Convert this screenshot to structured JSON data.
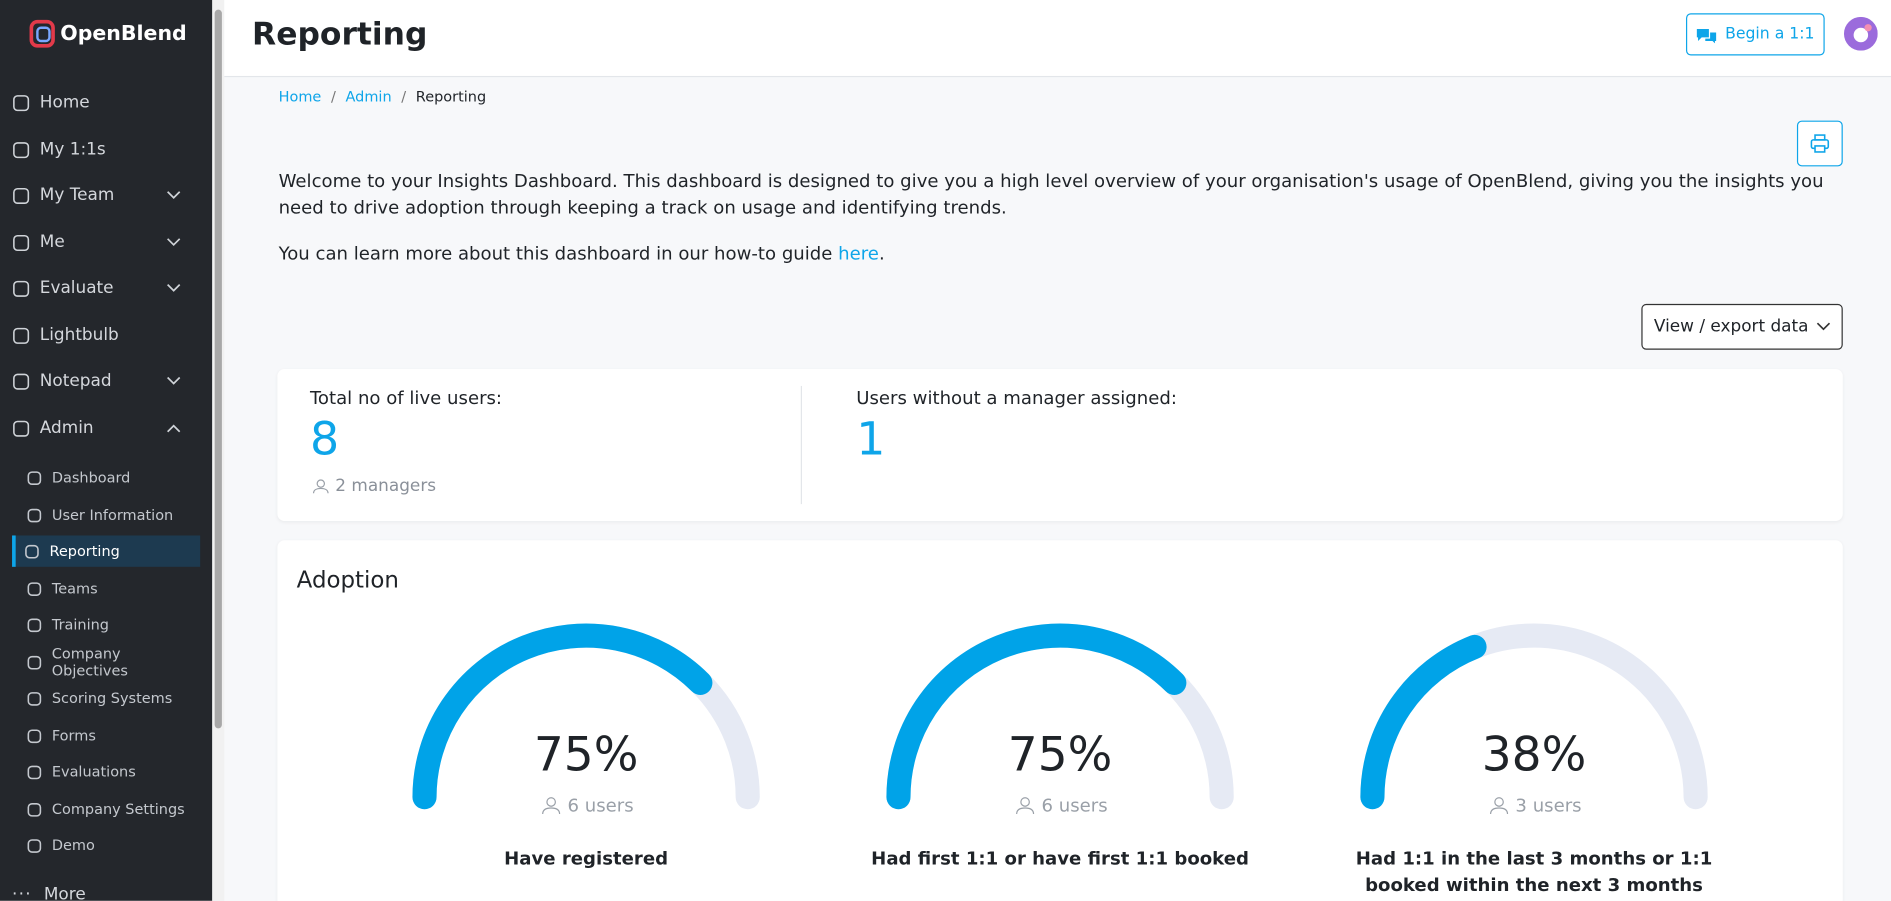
{
  "sidebar": {
    "brand": "OpenBlend",
    "nav": [
      "Home",
      "My 1:1s",
      "My Team",
      "Me",
      "Evaluate",
      "Lightbulb",
      "Notepad",
      "Admin"
    ],
    "admin_items": [
      "Dashboard",
      "User Information",
      "Reporting",
      "Teams",
      "Training",
      "Company Objectives",
      "Scoring Systems",
      "Forms",
      "Evaluations",
      "Company Settings",
      "Demo"
    ],
    "more": "More"
  },
  "header": {
    "title": "Reporting",
    "begin_button": "Begin a 1:1"
  },
  "breadcrumb": [
    "Home",
    "Admin",
    "Reporting"
  ],
  "intro": {
    "text": "Welcome to your Insights Dashboard. This dashboard is designed to give you a high level overview of your organisation's usage of OpenBlend, giving you the insights you need to drive adoption through keeping a track on usage and identifying trends.",
    "guide_text": "You can learn more about this dashboard in our how-to guide ",
    "guide_link": "here",
    "guide_end": "."
  },
  "export_button": "View / export data",
  "stats": [
    {
      "label": "Total no of live users:",
      "value": 8,
      "note": "2 managers"
    },
    {
      "label": "Users without a manager assigned:",
      "value": 1
    }
  ],
  "adoption": {
    "title": "Adoption",
    "gauges": [
      {
        "value": 75,
        "value_label": "75%",
        "users": "6 users",
        "label": "Have registered"
      },
      {
        "value": 75,
        "value_label": "75%",
        "users": "6 users",
        "label": "Had first 1:1 or have first 1:1 booked"
      },
      {
        "value": 38,
        "value_label": "38%",
        "users": "3 users",
        "label": "Had 1:1 in the last 3 months or 1:1 booked within the next 3 months"
      }
    ]
  }
}
